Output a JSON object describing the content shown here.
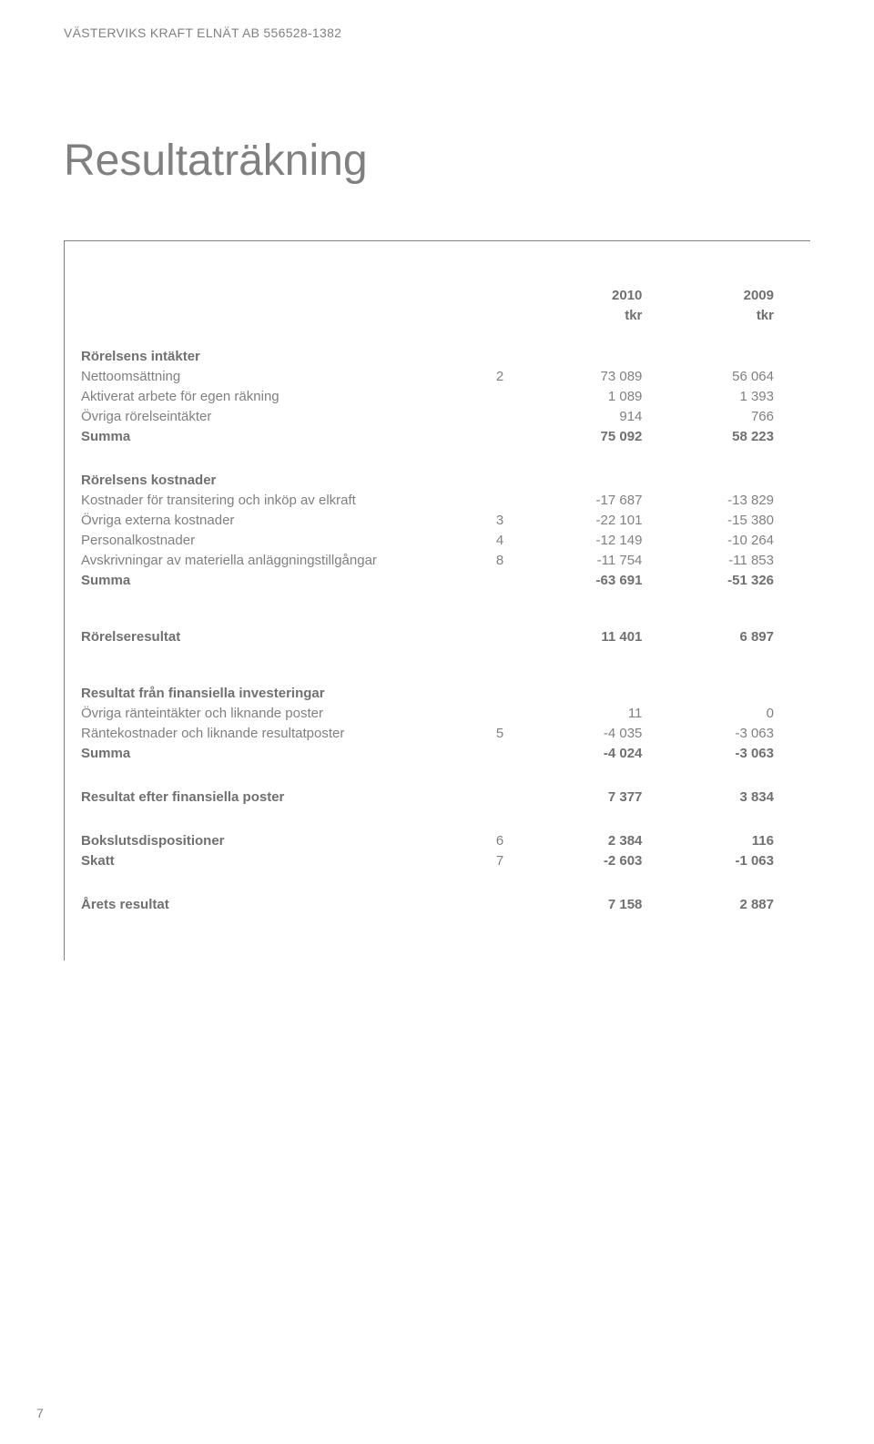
{
  "header": "VÄSTERVIKS KRAFT ELNÄT AB 556528-1382",
  "title": "Resultaträkning",
  "pageNumber": "7",
  "colors": {
    "text": "#808080",
    "textBold": "#707070",
    "border": "#808080",
    "background": "#ffffff"
  },
  "fonts": {
    "headerSize": 14,
    "titleSize": 48,
    "bodySize": 15
  },
  "tableHeader": {
    "year1": "2010",
    "year2": "2009",
    "unit1": "tkr",
    "unit2": "tkr"
  },
  "sections": [
    {
      "heading": "Rörelsens intäkter",
      "rows": [
        {
          "label": "Nettoomsättning",
          "note": "2",
          "v1": "73 089",
          "v2": "56 064"
        },
        {
          "label": "Aktiverat arbete för egen räkning",
          "note": "",
          "v1": "1 089",
          "v2": "1 393"
        },
        {
          "label": "Övriga rörelseintäkter",
          "note": "",
          "v1": "914",
          "v2": "766"
        },
        {
          "label": "Summa",
          "note": "",
          "v1": "75 092",
          "v2": "58 223",
          "bold": true
        }
      ]
    },
    {
      "heading": "Rörelsens kostnader",
      "rows": [
        {
          "label": "Kostnader för transitering och inköp av elkraft",
          "note": "",
          "v1": "-17 687",
          "v2": "-13 829"
        },
        {
          "label": "Övriga externa kostnader",
          "note": "3",
          "v1": "-22 101",
          "v2": "-15 380"
        },
        {
          "label": "Personalkostnader",
          "note": "4",
          "v1": "-12 149",
          "v2": "-10 264"
        },
        {
          "label": "Avskrivningar av materiella anläggningstillgångar",
          "note": "8",
          "v1": "-11 754",
          "v2": "-11 853"
        },
        {
          "label": "Summa",
          "note": "",
          "v1": "-63 691",
          "v2": "-51 326",
          "bold": true
        }
      ]
    },
    {
      "rows": [
        {
          "label": "Rörelseresultat",
          "note": "",
          "v1": "11 401",
          "v2": "6 897",
          "bold": true
        }
      ]
    },
    {
      "heading": "Resultat från finansiella investeringar",
      "rows": [
        {
          "label": "Övriga ränteintäkter och liknande poster",
          "note": "",
          "v1": "11",
          "v2": "0"
        },
        {
          "label": "Räntekostnader och liknande resultatposter",
          "note": "5",
          "v1": "-4 035",
          "v2": "-3 063"
        },
        {
          "label": "Summa",
          "note": "",
          "v1": "-4 024",
          "v2": "-3 063",
          "bold": true
        }
      ]
    },
    {
      "rows": [
        {
          "label": "Resultat efter finansiella poster",
          "note": "",
          "v1": "7 377",
          "v2": "3 834",
          "bold": true
        }
      ]
    },
    {
      "rows": [
        {
          "label": "Bokslutsdispositioner",
          "note": "6",
          "v1": "2 384",
          "v2": "116",
          "bold": true
        },
        {
          "label": "Skatt",
          "note": "7",
          "v1": "-2 603",
          "v2": "-1 063",
          "bold": true
        }
      ]
    },
    {
      "rows": [
        {
          "label": "Årets resultat",
          "note": "",
          "v1": "7 158",
          "v2": "2 887",
          "bold": true
        }
      ]
    }
  ]
}
